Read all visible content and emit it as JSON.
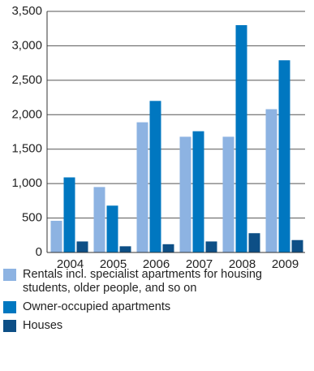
{
  "chart_data": {
    "type": "bar",
    "categories": [
      "2004",
      "2005",
      "2006",
      "2007",
      "2008",
      "2009"
    ],
    "series": [
      {
        "name": "Rentals incl. specialist apartments for housing students, older people, and so on",
        "color": "#8db3e2",
        "values": [
          460,
          950,
          1890,
          1680,
          1680,
          2080
        ]
      },
      {
        "name": "Owner-occupied apartments",
        "color": "#0077c0",
        "values": [
          1090,
          680,
          2200,
          1760,
          3300,
          2790
        ]
      },
      {
        "name": "Houses",
        "color": "#0d4f86",
        "values": [
          160,
          90,
          120,
          160,
          280,
          180
        ]
      }
    ],
    "y_ticks": [
      "0",
      "500",
      "1,000",
      "1,500",
      "2,000",
      "2,500",
      "3,000",
      "3,500"
    ],
    "ylim": [
      0,
      3500
    ],
    "grid": true,
    "legend_position": "bottom"
  }
}
